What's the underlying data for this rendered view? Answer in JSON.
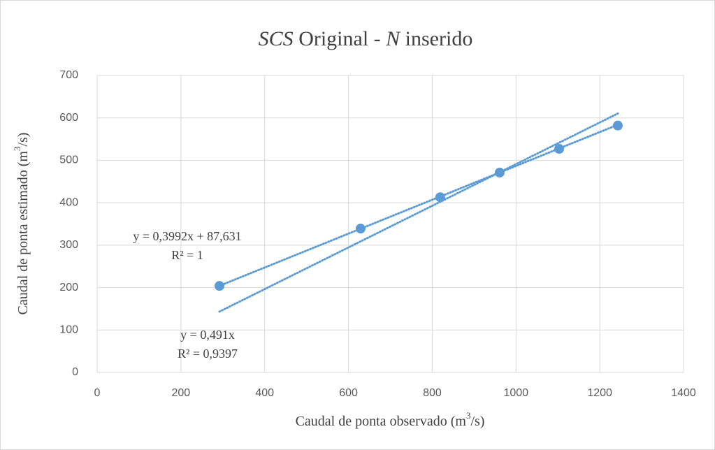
{
  "chart_data": {
    "type": "scatter",
    "title": [
      "SCS",
      " Original - ",
      "N",
      " inserido"
    ],
    "x_label": [
      "Caudal de ponta observado (m",
      "3",
      "/s)"
    ],
    "y_label": [
      "Caudal de ponta estimado (m",
      "3",
      "/s)"
    ],
    "x": [
      292,
      629,
      819,
      961,
      1103,
      1243
    ],
    "series": [
      {
        "color": "#5b9bd5",
        "values": [
          204,
          339,
          413,
          471,
          527,
          582
        ]
      }
    ],
    "trendlines": [
      {
        "slope": 0.3992,
        "intercept": 87.631,
        "equation": "y = 0,3992x + 87,631",
        "r2": "R² = 1"
      },
      {
        "slope": 0.491,
        "intercept": 0,
        "equation": "y = 0,491x",
        "r2": "R² = 0,9397"
      }
    ],
    "xlim": [
      0,
      1400
    ],
    "xticks": [
      0,
      200,
      400,
      600,
      800,
      1000,
      1200,
      1400
    ],
    "ylim": [
      0,
      700
    ],
    "yticks": [
      0,
      100,
      200,
      300,
      400,
      500,
      600,
      700
    ],
    "grid": true
  }
}
